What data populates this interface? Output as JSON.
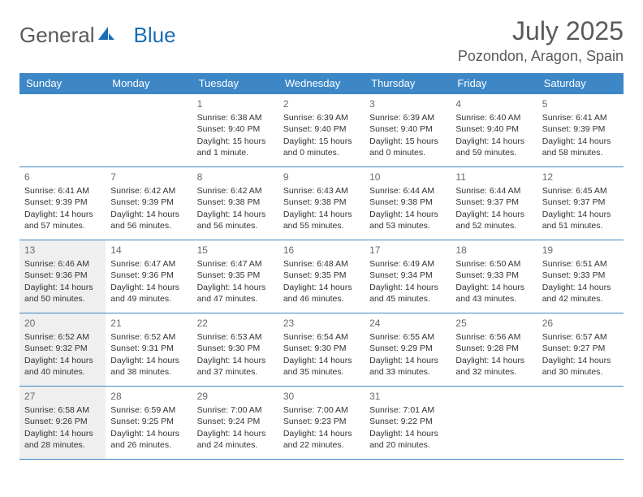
{
  "logo": {
    "text1": "General",
    "text2": "Blue"
  },
  "title": {
    "month": "July 2025",
    "location": "Pozondon, Aragon, Spain"
  },
  "colors": {
    "header_bg": "#3d87c7",
    "text_gray": "#5a5a5a",
    "cell_shade": "#efefef"
  },
  "weekdays": [
    "Sunday",
    "Monday",
    "Tuesday",
    "Wednesday",
    "Thursday",
    "Friday",
    "Saturday"
  ],
  "weeks": [
    [
      {
        "empty": true
      },
      {
        "empty": true
      },
      {
        "day": "1",
        "sunrise": "6:38 AM",
        "sunset": "9:40 PM",
        "daylight": "15 hours and 1 minute."
      },
      {
        "day": "2",
        "sunrise": "6:39 AM",
        "sunset": "9:40 PM",
        "daylight": "15 hours and 0 minutes."
      },
      {
        "day": "3",
        "sunrise": "6:39 AM",
        "sunset": "9:40 PM",
        "daylight": "15 hours and 0 minutes."
      },
      {
        "day": "4",
        "sunrise": "6:40 AM",
        "sunset": "9:40 PM",
        "daylight": "14 hours and 59 minutes."
      },
      {
        "day": "5",
        "sunrise": "6:41 AM",
        "sunset": "9:39 PM",
        "daylight": "14 hours and 58 minutes."
      }
    ],
    [
      {
        "day": "6",
        "sunrise": "6:41 AM",
        "sunset": "9:39 PM",
        "daylight": "14 hours and 57 minutes."
      },
      {
        "day": "7",
        "sunrise": "6:42 AM",
        "sunset": "9:39 PM",
        "daylight": "14 hours and 56 minutes."
      },
      {
        "day": "8",
        "sunrise": "6:42 AM",
        "sunset": "9:38 PM",
        "daylight": "14 hours and 56 minutes."
      },
      {
        "day": "9",
        "sunrise": "6:43 AM",
        "sunset": "9:38 PM",
        "daylight": "14 hours and 55 minutes."
      },
      {
        "day": "10",
        "sunrise": "6:44 AM",
        "sunset": "9:38 PM",
        "daylight": "14 hours and 53 minutes."
      },
      {
        "day": "11",
        "sunrise": "6:44 AM",
        "sunset": "9:37 PM",
        "daylight": "14 hours and 52 minutes."
      },
      {
        "day": "12",
        "sunrise": "6:45 AM",
        "sunset": "9:37 PM",
        "daylight": "14 hours and 51 minutes."
      }
    ],
    [
      {
        "day": "13",
        "sunrise": "6:46 AM",
        "sunset": "9:36 PM",
        "daylight": "14 hours and 50 minutes.",
        "shade": true
      },
      {
        "day": "14",
        "sunrise": "6:47 AM",
        "sunset": "9:36 PM",
        "daylight": "14 hours and 49 minutes."
      },
      {
        "day": "15",
        "sunrise": "6:47 AM",
        "sunset": "9:35 PM",
        "daylight": "14 hours and 47 minutes."
      },
      {
        "day": "16",
        "sunrise": "6:48 AM",
        "sunset": "9:35 PM",
        "daylight": "14 hours and 46 minutes."
      },
      {
        "day": "17",
        "sunrise": "6:49 AM",
        "sunset": "9:34 PM",
        "daylight": "14 hours and 45 minutes."
      },
      {
        "day": "18",
        "sunrise": "6:50 AM",
        "sunset": "9:33 PM",
        "daylight": "14 hours and 43 minutes."
      },
      {
        "day": "19",
        "sunrise": "6:51 AM",
        "sunset": "9:33 PM",
        "daylight": "14 hours and 42 minutes."
      }
    ],
    [
      {
        "day": "20",
        "sunrise": "6:52 AM",
        "sunset": "9:32 PM",
        "daylight": "14 hours and 40 minutes.",
        "shade": true
      },
      {
        "day": "21",
        "sunrise": "6:52 AM",
        "sunset": "9:31 PM",
        "daylight": "14 hours and 38 minutes."
      },
      {
        "day": "22",
        "sunrise": "6:53 AM",
        "sunset": "9:30 PM",
        "daylight": "14 hours and 37 minutes."
      },
      {
        "day": "23",
        "sunrise": "6:54 AM",
        "sunset": "9:30 PM",
        "daylight": "14 hours and 35 minutes."
      },
      {
        "day": "24",
        "sunrise": "6:55 AM",
        "sunset": "9:29 PM",
        "daylight": "14 hours and 33 minutes."
      },
      {
        "day": "25",
        "sunrise": "6:56 AM",
        "sunset": "9:28 PM",
        "daylight": "14 hours and 32 minutes."
      },
      {
        "day": "26",
        "sunrise": "6:57 AM",
        "sunset": "9:27 PM",
        "daylight": "14 hours and 30 minutes."
      }
    ],
    [
      {
        "day": "27",
        "sunrise": "6:58 AM",
        "sunset": "9:26 PM",
        "daylight": "14 hours and 28 minutes.",
        "shade": true
      },
      {
        "day": "28",
        "sunrise": "6:59 AM",
        "sunset": "9:25 PM",
        "daylight": "14 hours and 26 minutes."
      },
      {
        "day": "29",
        "sunrise": "7:00 AM",
        "sunset": "9:24 PM",
        "daylight": "14 hours and 24 minutes."
      },
      {
        "day": "30",
        "sunrise": "7:00 AM",
        "sunset": "9:23 PM",
        "daylight": "14 hours and 22 minutes."
      },
      {
        "day": "31",
        "sunrise": "7:01 AM",
        "sunset": "9:22 PM",
        "daylight": "14 hours and 20 minutes."
      },
      {
        "empty": true
      },
      {
        "empty": true
      }
    ]
  ],
  "labels": {
    "sunrise": "Sunrise:",
    "sunset": "Sunset:",
    "daylight": "Daylight:"
  }
}
